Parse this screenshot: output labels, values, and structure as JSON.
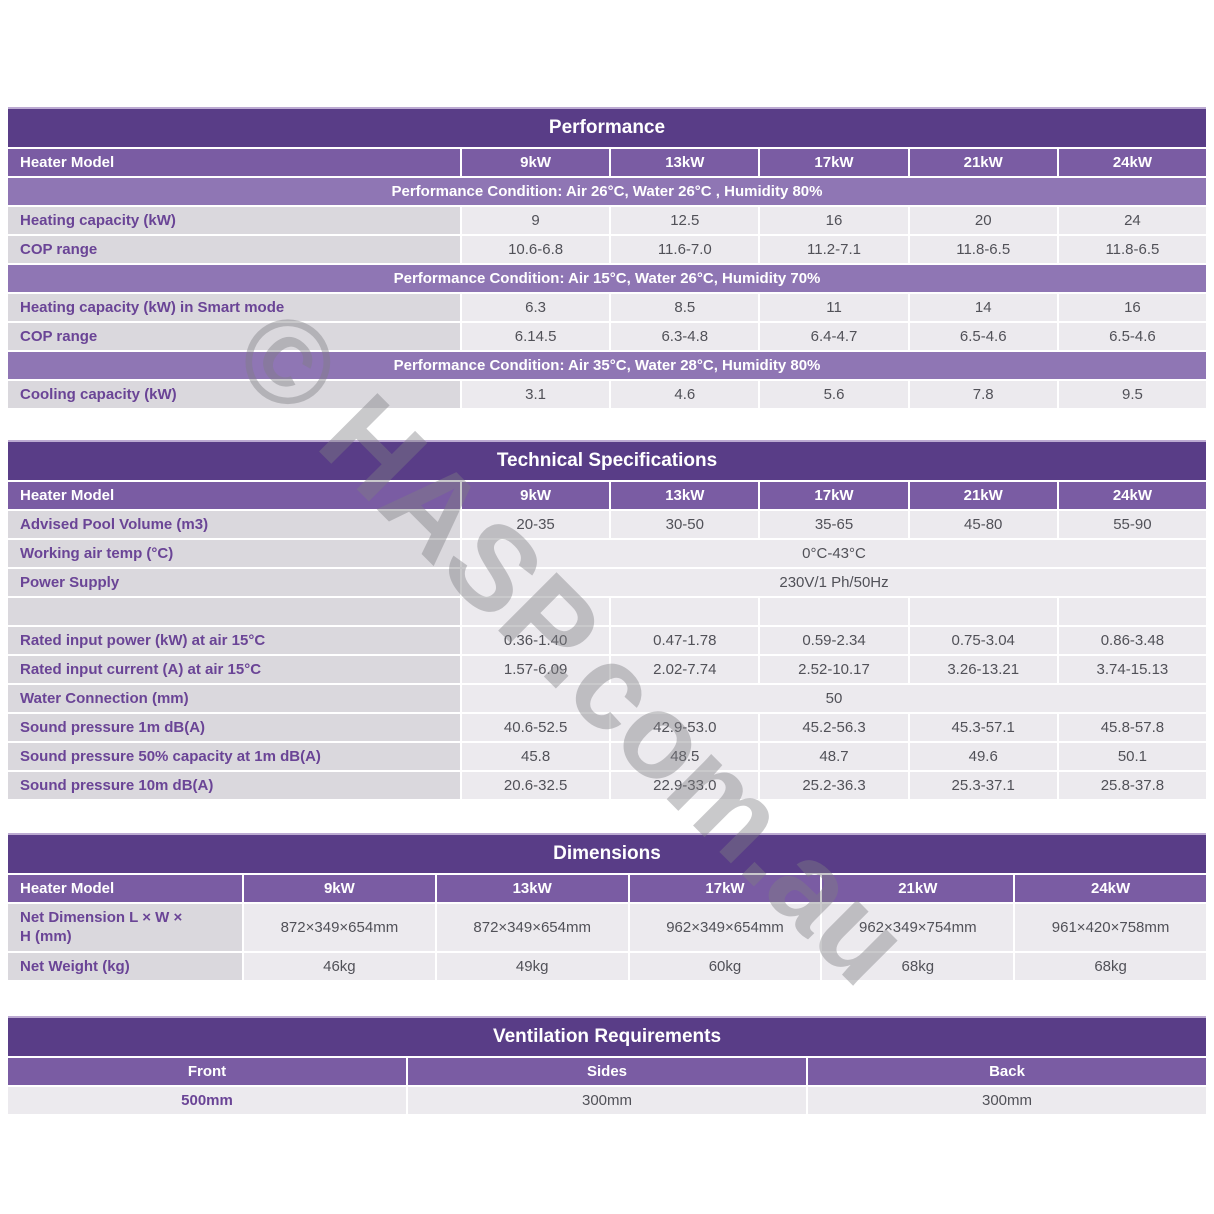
{
  "watermark": {
    "text": "© HASP.com.au"
  },
  "colors": {
    "title_bar": "#593d87",
    "header_row": "#7a5ca3",
    "condition_band": "#8f76b4",
    "label_cell_bg": "#dad8dd",
    "value_cell_bg": "#eceaee",
    "label_text": "#6a4496",
    "value_text": "#515158"
  },
  "performance": {
    "title": "Performance",
    "header": {
      "label": "Heater Model",
      "models": [
        "9kW",
        "13kW",
        "17kW",
        "21kW",
        "24kW"
      ]
    },
    "sections": [
      {
        "condition": "Performance Condition: Air 26°C, Water 26°C , Humidity 80%",
        "rows": [
          {
            "label": "Heating capacity (kW)",
            "values": [
              "9",
              "12.5",
              "16",
              "20",
              "24"
            ]
          },
          {
            "label": "COP range",
            "values": [
              "10.6-6.8",
              "11.6-7.0",
              "11.2-7.1",
              "11.8-6.5",
              "11.8-6.5"
            ]
          }
        ]
      },
      {
        "condition": "Performance Condition: Air 15°C, Water 26°C, Humidity 70%",
        "rows": [
          {
            "label": "Heating capacity (kW) in Smart mode",
            "values": [
              "6.3",
              "8.5",
              "11",
              "14",
              "16"
            ]
          },
          {
            "label": "COP range",
            "values": [
              "6.14.5",
              "6.3-4.8",
              "6.4-4.7",
              "6.5-4.6",
              "6.5-4.6"
            ]
          }
        ]
      },
      {
        "condition": "Performance Condition: Air 35°C, Water 28°C, Humidity 80%",
        "rows": [
          {
            "label": "Cooling capacity (kW)",
            "values": [
              "3.1",
              "4.6",
              "5.6",
              "7.8",
              "9.5"
            ]
          }
        ]
      }
    ]
  },
  "technical": {
    "title": "Technical Specifications",
    "header": {
      "label": "Heater Model",
      "models": [
        "9kW",
        "13kW",
        "17kW",
        "21kW",
        "24kW"
      ]
    },
    "rows": [
      {
        "label": "Advised Pool Volume (m3)",
        "values": [
          "20-35",
          "30-50",
          "35-65",
          "45-80",
          "55-90"
        ]
      },
      {
        "label": "Working air temp (°C)",
        "merged": "0°C-43°C"
      },
      {
        "label": "Power Supply",
        "merged": "230V/1 Ph/50Hz"
      },
      {
        "label": "",
        "values": [
          "",
          "",
          "",
          "",
          ""
        ]
      },
      {
        "label": "Rated input power (kW) at air 15°C",
        "values": [
          "0.36-1.40",
          "0.47-1.78",
          "0.59-2.34",
          "0.75-3.04",
          "0.86-3.48"
        ]
      },
      {
        "label": "Rated input current (A) at air 15°C",
        "values": [
          "1.57-6.09",
          "2.02-7.74",
          "2.52-10.17",
          "3.26-13.21",
          "3.74-15.13"
        ]
      },
      {
        "label": "Water Connection (mm)",
        "merged": "50"
      },
      {
        "label": "Sound pressure 1m dB(A)",
        "values": [
          "40.6-52.5",
          "42.9-53.0",
          "45.2-56.3",
          "45.3-57.1",
          "45.8-57.8"
        ]
      },
      {
        "label": "Sound pressure 50% capacity at 1m dB(A)",
        "values": [
          "45.8",
          "48.5",
          "48.7",
          "49.6",
          "50.1"
        ]
      },
      {
        "label": "Sound pressure 10m dB(A)",
        "values": [
          "20.6-32.5",
          "22.9-33.0",
          "25.2-36.3",
          "25.3-37.1",
          "25.8-37.8"
        ]
      }
    ]
  },
  "dimensions": {
    "title": "Dimensions",
    "header": {
      "label": "Heater Model",
      "models": [
        "9kW",
        "13kW",
        "17kW",
        "21kW",
        "24kW"
      ]
    },
    "rows": [
      {
        "label": "Net Dimension L × W × H (mm)",
        "values": [
          "872×349×654mm",
          "872×349×654mm",
          "962×349×654mm",
          "962×349×754mm",
          "961×420×758mm"
        ]
      },
      {
        "label": "Net Weight (kg)",
        "values": [
          "46kg",
          "49kg",
          "60kg",
          "68kg",
          "68kg"
        ]
      }
    ]
  },
  "ventilation": {
    "title": "Ventilation Requirements",
    "header": [
      "Front",
      "Sides",
      "Back"
    ],
    "values": [
      "500mm",
      "300mm",
      "300mm"
    ]
  }
}
